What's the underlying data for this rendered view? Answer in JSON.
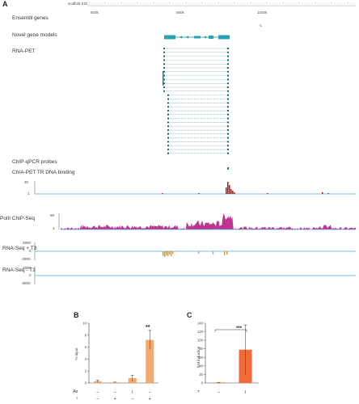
{
  "panel_a": {
    "letter": "A",
    "coordinate": "scaffold 210",
    "ruler_ticks": [
      "800k",
      "880k",
      "1000k"
    ],
    "tracks": {
      "ensembl": "Ensembl genes",
      "ensembl_mark": "-1",
      "novel": "Novel gene models",
      "rnapet": "RNA-PET",
      "probes": "ChIP-qPCR probes",
      "chiapet": "ChIA-PET TR DNA binding",
      "chiapet_ticks": [
        "20",
        "1"
      ],
      "pol2": "PolII ChIP-Seq",
      "pol2_ticks": [
        "56",
        "1"
      ],
      "rnaseq_plus": "RNA-Seq + T3",
      "rnaseq_plus_ticks": [
        "2800",
        "0",
        "-2800"
      ],
      "rnaseq_minus": "RNA-Seq - T3",
      "rnaseq_minus_ticks": [
        "2800",
        "0",
        "-2800"
      ]
    },
    "colors": {
      "teal": "#1a8a8a",
      "chiapet": "#b22222",
      "pol2": "#c0338f",
      "rnaseq": "#e0a020",
      "baseline": "#4aa8d8"
    }
  },
  "panel_b": {
    "letter": "B",
    "ylabel": "% input",
    "significance": "**",
    "row_label": "Ab",
    "row2_label": "T",
    "row_marks": [
      "–",
      "–",
      "I",
      "–"
    ],
    "row2_marks": [
      "–",
      "+",
      "–",
      "+"
    ],
    "chart_data": {
      "type": "bar",
      "ylim": [
        0,
        10
      ],
      "yticks": [
        "0",
        "2",
        "4",
        "6",
        "8",
        "10"
      ],
      "values": [
        0.3,
        0.1,
        0.8,
        7.2
      ],
      "errors": [
        0.2,
        0.05,
        0.5,
        1.6
      ],
      "bar_color": "#f5a86b"
    }
  },
  "panel_c": {
    "letter": "C",
    "ylabel": "fold induction",
    "significance": "***",
    "row_label": "T",
    "row_marks": [
      "–",
      "I"
    ],
    "chart_data": {
      "type": "bar",
      "ylim": [
        0,
        140
      ],
      "yticks": [
        "0",
        "20",
        "40",
        "60",
        "80",
        "100",
        "120",
        "140"
      ],
      "values": [
        1,
        78
      ],
      "errors": [
        0.5,
        58
      ],
      "bar_color": "#f46a3a"
    }
  }
}
